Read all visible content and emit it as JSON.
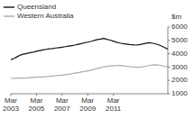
{
  "chart_data": {
    "type": "line",
    "ylabel": "$m",
    "categories": [
      "Mar\n2003",
      null,
      null,
      null,
      null,
      null,
      null,
      null,
      "Mar\n2005",
      null,
      null,
      null,
      null,
      null,
      null,
      null,
      "Mar\n2007",
      null,
      null,
      null,
      null,
      null,
      null,
      null,
      "Mar\n2009",
      null,
      null,
      null,
      null,
      null,
      null,
      null,
      "Mar\n2011",
      null,
      null,
      null,
      null,
      null,
      null,
      null,
      null,
      null,
      null,
      null,
      null,
      null,
      null,
      null,
      null,
      null
    ],
    "series": [
      {
        "name": "Queensland",
        "color": "#111111",
        "values": [
          3550,
          3650,
          3780,
          3900,
          3980,
          4020,
          4080,
          4120,
          4180,
          4230,
          4280,
          4330,
          4370,
          4390,
          4430,
          4460,
          4490,
          4530,
          4570,
          4610,
          4650,
          4710,
          4760,
          4820,
          4870,
          4920,
          5000,
          5060,
          5100,
          5150,
          5080,
          5020,
          4940,
          4860,
          4800,
          4760,
          4730,
          4690,
          4670,
          4650,
          4680,
          4720,
          4770,
          4820,
          4800,
          4750,
          4680,
          4580,
          4460,
          4350
        ]
      },
      {
        "name": "Western Australia",
        "color": "#aaaaaa",
        "values": [
          2150,
          2160,
          2170,
          2180,
          2175,
          2190,
          2210,
          2225,
          2240,
          2255,
          2265,
          2280,
          2300,
          2325,
          2350,
          2375,
          2400,
          2425,
          2460,
          2495,
          2540,
          2580,
          2625,
          2670,
          2720,
          2770,
          2840,
          2900,
          2950,
          3010,
          3050,
          3080,
          3100,
          3110,
          3120,
          3090,
          3060,
          3030,
          3010,
          2990,
          3000,
          3020,
          3060,
          3110,
          3160,
          3170,
          3150,
          3110,
          3060,
          3000
        ]
      }
    ],
    "ylim": [
      1000,
      6000
    ],
    "yticks": [
      1000,
      2000,
      3000,
      4000,
      5000,
      6000
    ],
    "grid": false,
    "legend": "top-left"
  }
}
